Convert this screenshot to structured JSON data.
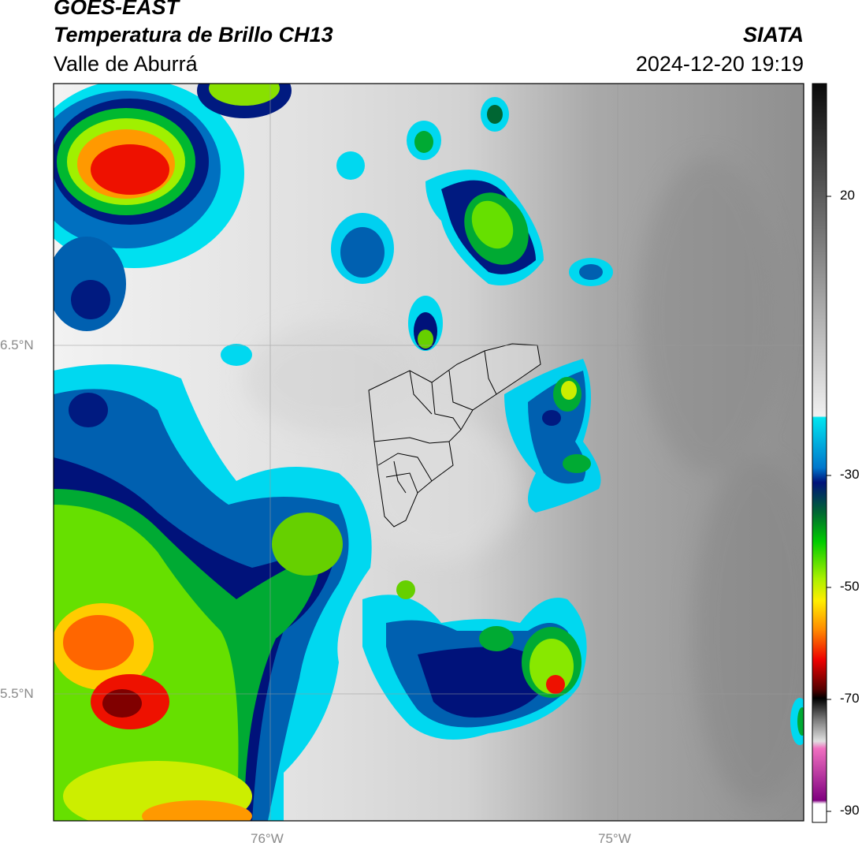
{
  "header": {
    "satellite": "GOES-EAST",
    "product": "Temperatura de Brillo CH13",
    "region": "Valle de Aburrá",
    "agency": "SIATA",
    "datetime": "2024-12-20 19:19"
  },
  "axes": {
    "lat_labels": [
      "6.5°N",
      "5.5°N"
    ],
    "lon_labels": [
      "76°W",
      "75°W"
    ]
  },
  "colorbar": {
    "ticks": [
      "20",
      "-30",
      "-50",
      "-70",
      "-90"
    ]
  }
}
